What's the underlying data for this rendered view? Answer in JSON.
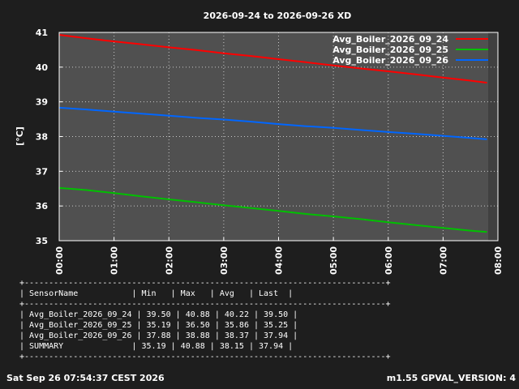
{
  "chart_data": {
    "type": "line",
    "title": "2026-09-24 to 2026-09-26 XD",
    "ylabel": "[°C]",
    "xlabel": "",
    "xlim": [
      "00:00",
      "08:00"
    ],
    "ylim": [
      35,
      41
    ],
    "x_ticks": [
      "00:00",
      "01:00",
      "02:00",
      "03:00",
      "04:00",
      "05:00",
      "06:00",
      "07:00",
      "08:00"
    ],
    "y_ticks": [
      "35",
      "36",
      "37",
      "38",
      "39",
      "40",
      "41"
    ],
    "grid": true,
    "legend_position": "top-right",
    "series": [
      {
        "name": "Avg_Boiler_2026_09_24",
        "color": "#ff0000",
        "x": [
          0,
          0.5,
          1,
          1.5,
          2,
          2.5,
          3,
          3.5,
          4,
          4.5,
          5,
          5.5,
          6,
          6.5,
          7,
          7.5,
          7.8
        ],
        "values": [
          40.93,
          40.83,
          40.74,
          40.66,
          40.57,
          40.49,
          40.4,
          40.32,
          40.23,
          40.14,
          40.05,
          39.96,
          39.88,
          39.79,
          39.7,
          39.61,
          39.55
        ]
      },
      {
        "name": "Avg_Boiler_2026_09_25",
        "color": "#00c000",
        "x": [
          0,
          0.5,
          1,
          1.5,
          2,
          2.5,
          3,
          3.5,
          4,
          4.5,
          5,
          5.5,
          6,
          6.5,
          7,
          7.5,
          7.8
        ],
        "values": [
          36.52,
          36.46,
          36.37,
          36.28,
          36.19,
          36.11,
          36.02,
          35.94,
          35.86,
          35.77,
          35.7,
          35.62,
          35.53,
          35.45,
          35.37,
          35.29,
          35.25
        ]
      },
      {
        "name": "Avg_Boiler_2026_09_26",
        "color": "#0066ff",
        "x": [
          0,
          0.5,
          1,
          1.5,
          2,
          2.5,
          3,
          3.5,
          4,
          4.5,
          5,
          5.5,
          6,
          6.5,
          7,
          7.5,
          7.8
        ],
        "values": [
          38.83,
          38.78,
          38.72,
          38.66,
          38.6,
          38.54,
          38.49,
          38.43,
          38.36,
          38.3,
          38.25,
          38.19,
          38.13,
          38.08,
          38.02,
          37.96,
          37.92
        ]
      }
    ]
  },
  "stats_table": {
    "border": "+--------------------------------------------------------------------------+",
    "columns": [
      "SensorName",
      "Min",
      "Max",
      "Avg",
      "Last"
    ],
    "rows": [
      [
        "Avg_Boiler_2026_09_24",
        "39.50",
        "40.88",
        "40.22",
        "39.50"
      ],
      [
        "Avg_Boiler_2026_09_25",
        "35.19",
        "36.50",
        "35.86",
        "35.25"
      ],
      [
        "Avg_Boiler_2026_09_26",
        "37.88",
        "38.88",
        "38.37",
        "37.94"
      ],
      [
        "SUMMARY",
        "35.19",
        "40.88",
        "38.15",
        "37.94"
      ]
    ]
  },
  "footer": {
    "timestamp": "Sat Sep 26 07:54:37 CEST 2026",
    "version": "m1.55 GPVAL_VERSION: 4"
  }
}
